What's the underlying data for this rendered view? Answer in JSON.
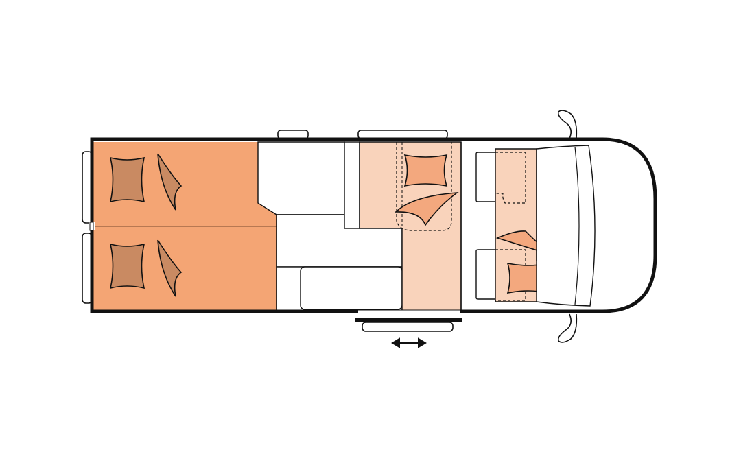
{
  "colors": {
    "background": "#ffffff",
    "outline": "#111111",
    "bed": "#f4a574",
    "pillow": "#c98a62",
    "seating": "#f9d3bb",
    "cushion": "#f3a87e",
    "furniture": "#ffffff"
  },
  "floorplan": {
    "beds": [
      {
        "name": "rear-bed-left",
        "pillows": 2
      },
      {
        "name": "rear-bed-right",
        "pillows": 2
      }
    ],
    "dinette_bench_cushions": 2,
    "cab_seat_cushions": 2,
    "sliding_door_icon": "double-arrow-icon"
  }
}
